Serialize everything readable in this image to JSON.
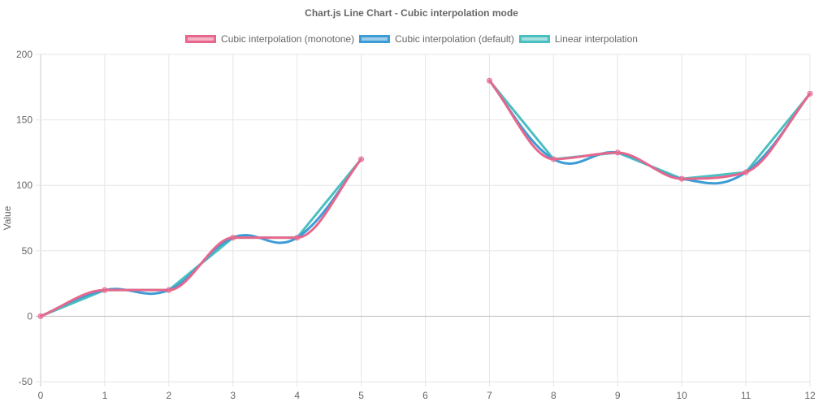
{
  "chart_data": {
    "type": "line",
    "title": "Chart.js Line Chart - Cubic interpolation mode",
    "xlabel": "",
    "ylabel": "Value",
    "categories": [
      "0",
      "1",
      "2",
      "3",
      "4",
      "5",
      "6",
      "7",
      "8",
      "9",
      "10",
      "11",
      "12"
    ],
    "ylim": [
      -50,
      200
    ],
    "yticks": [
      -50,
      0,
      50,
      100,
      150,
      200
    ],
    "grid": true,
    "legend_position": "top",
    "series": [
      {
        "name": "Cubic interpolation (monotone)",
        "color": "#e7678c",
        "interpolation": "monotone",
        "values": [
          0,
          20,
          20,
          60,
          60,
          120,
          null,
          180,
          120,
          125,
          105,
          110,
          170
        ]
      },
      {
        "name": "Cubic interpolation (default)",
        "color": "#3d9cd6",
        "interpolation": "cubic",
        "values": [
          0,
          20,
          20,
          60,
          60,
          120,
          null,
          180,
          120,
          125,
          105,
          110,
          170
        ]
      },
      {
        "name": "Linear interpolation",
        "color": "#4bbfc0",
        "interpolation": "linear",
        "values": [
          0,
          20,
          20,
          60,
          60,
          120,
          null,
          180,
          120,
          125,
          105,
          110,
          170
        ]
      }
    ]
  }
}
